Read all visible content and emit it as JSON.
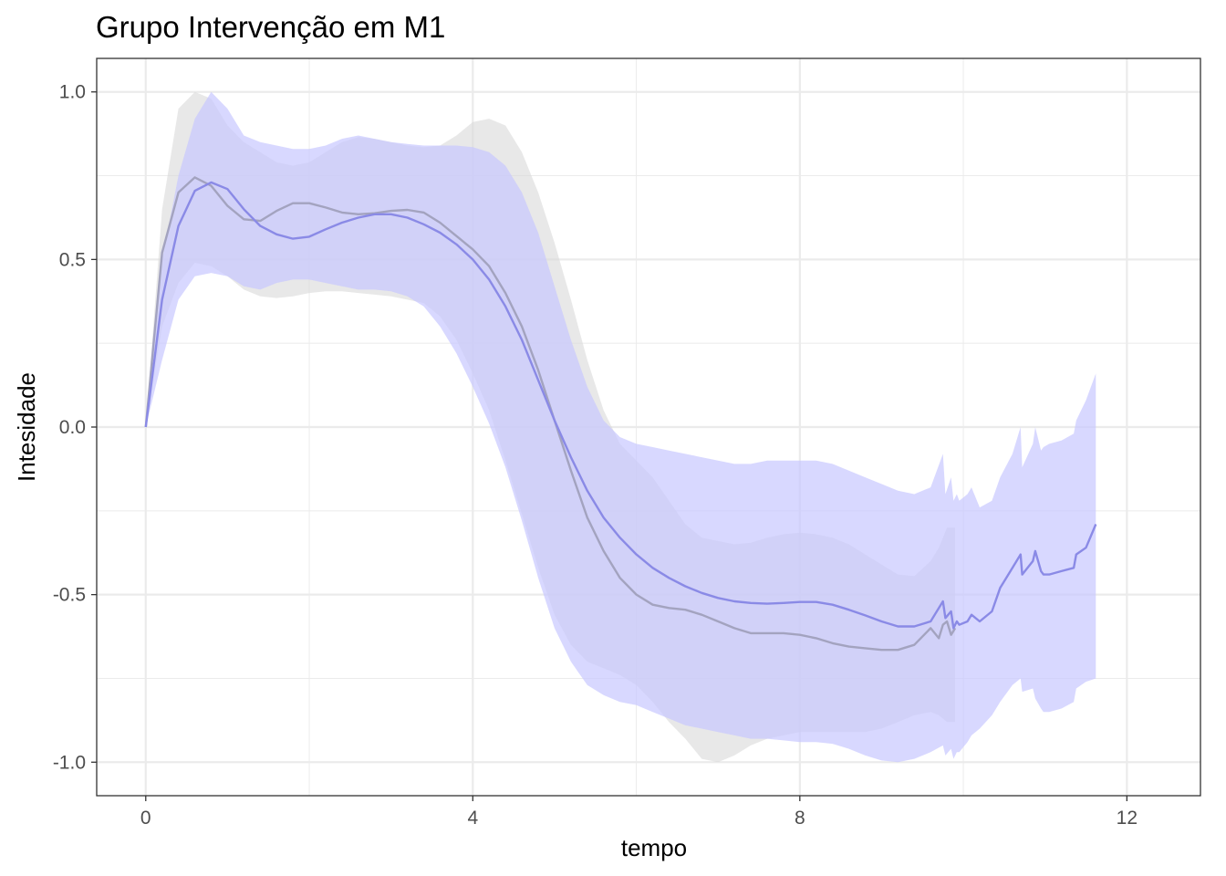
{
  "chart_data": {
    "type": "line",
    "title": "Grupo Intervenção em M1",
    "xlabel": "tempo",
    "ylabel": "Intesidade",
    "xlim": [
      -0.6,
      12.9
    ],
    "ylim": [
      -1.1,
      1.1
    ],
    "x_ticks": [
      0,
      4,
      8,
      12
    ],
    "x_tick_labels": [
      "0",
      "4",
      "8",
      "12"
    ],
    "y_ticks": [
      1.0,
      0.5,
      0.0,
      -0.5,
      -1.0
    ],
    "y_tick_labels": [
      "1.0",
      "0.5",
      "0.0",
      "-0.5",
      "-1.0"
    ],
    "grid": true,
    "legend": "none",
    "series": [
      {
        "color": "#a3a3bf",
        "band_color": "#d9d9d9",
        "x": [
          0,
          0.2,
          0.4,
          0.6,
          0.8,
          1.0,
          1.2,
          1.4,
          1.6,
          1.8,
          2.0,
          2.2,
          2.4,
          2.6,
          2.8,
          3.0,
          3.2,
          3.4,
          3.6,
          3.8,
          4.0,
          4.2,
          4.4,
          4.6,
          4.8,
          5.0,
          5.2,
          5.4,
          5.6,
          5.8,
          6.0,
          6.2,
          6.4,
          6.6,
          6.8,
          7.0,
          7.2,
          7.4,
          7.6,
          7.8,
          8.0,
          8.2,
          8.4,
          8.6,
          8.8,
          9.0,
          9.2,
          9.4,
          9.6,
          9.7,
          9.75,
          9.8,
          9.85,
          9.9
        ],
        "mean": [
          0.0,
          0.52,
          0.7,
          0.745,
          0.72,
          0.66,
          0.62,
          0.615,
          0.645,
          0.668,
          0.668,
          0.655,
          0.64,
          0.635,
          0.638,
          0.645,
          0.648,
          0.64,
          0.61,
          0.57,
          0.53,
          0.48,
          0.4,
          0.3,
          0.17,
          0.02,
          -0.13,
          -0.27,
          -0.37,
          -0.45,
          -0.5,
          -0.53,
          -0.54,
          -0.545,
          -0.56,
          -0.58,
          -0.6,
          -0.615,
          -0.615,
          -0.615,
          -0.62,
          -0.63,
          -0.645,
          -0.655,
          -0.66,
          -0.665,
          -0.665,
          -0.65,
          -0.6,
          -0.63,
          -0.59,
          -0.58,
          -0.62,
          -0.6
        ],
        "upper": [
          0.0,
          0.65,
          0.95,
          1.0,
          0.98,
          0.9,
          0.85,
          0.82,
          0.79,
          0.78,
          0.79,
          0.82,
          0.85,
          0.865,
          0.86,
          0.85,
          0.84,
          0.835,
          0.84,
          0.87,
          0.91,
          0.92,
          0.9,
          0.82,
          0.7,
          0.55,
          0.38,
          0.2,
          0.05,
          -0.05,
          -0.1,
          -0.15,
          -0.22,
          -0.29,
          -0.33,
          -0.34,
          -0.35,
          -0.345,
          -0.33,
          -0.32,
          -0.315,
          -0.32,
          -0.33,
          -0.35,
          -0.38,
          -0.41,
          -0.44,
          -0.445,
          -0.4,
          -0.36,
          -0.33,
          -0.3,
          -0.3,
          -0.3
        ],
        "lower": [
          0.0,
          0.3,
          0.43,
          0.49,
          0.48,
          0.45,
          0.41,
          0.39,
          0.385,
          0.39,
          0.4,
          0.405,
          0.405,
          0.4,
          0.395,
          0.39,
          0.38,
          0.37,
          0.33,
          0.26,
          0.16,
          0.05,
          -0.1,
          -0.26,
          -0.42,
          -0.56,
          -0.65,
          -0.7,
          -0.72,
          -0.74,
          -0.77,
          -0.82,
          -0.88,
          -0.93,
          -0.99,
          -1.0,
          -0.98,
          -0.95,
          -0.93,
          -0.92,
          -0.91,
          -0.91,
          -0.91,
          -0.91,
          -0.91,
          -0.9,
          -0.88,
          -0.86,
          -0.85,
          -0.86,
          -0.87,
          -0.88,
          -0.88,
          -0.88
        ]
      },
      {
        "color": "#8a8ae6",
        "band_color": "#c8c8ff",
        "x": [
          0,
          0.2,
          0.4,
          0.6,
          0.8,
          1.0,
          1.2,
          1.4,
          1.6,
          1.8,
          2.0,
          2.2,
          2.4,
          2.6,
          2.8,
          3.0,
          3.2,
          3.4,
          3.6,
          3.8,
          4.0,
          4.2,
          4.4,
          4.6,
          4.8,
          5.0,
          5.2,
          5.4,
          5.6,
          5.8,
          6.0,
          6.2,
          6.4,
          6.6,
          6.8,
          7.0,
          7.2,
          7.4,
          7.6,
          7.8,
          8.0,
          8.2,
          8.4,
          8.6,
          8.8,
          9.0,
          9.2,
          9.4,
          9.6,
          9.75,
          9.78,
          9.85,
          9.88,
          9.92,
          9.95,
          10.05,
          10.1,
          10.2,
          10.35,
          10.45,
          10.6,
          10.7,
          10.72,
          10.85,
          10.88,
          10.95,
          10.98,
          11.05,
          11.2,
          11.35,
          11.38,
          11.5,
          11.62
        ],
        "mean": [
          0.0,
          0.38,
          0.6,
          0.705,
          0.73,
          0.71,
          0.65,
          0.6,
          0.575,
          0.562,
          0.568,
          0.59,
          0.61,
          0.625,
          0.635,
          0.635,
          0.625,
          0.605,
          0.58,
          0.545,
          0.5,
          0.44,
          0.36,
          0.26,
          0.14,
          0.02,
          -0.09,
          -0.19,
          -0.27,
          -0.33,
          -0.38,
          -0.42,
          -0.45,
          -0.475,
          -0.495,
          -0.51,
          -0.52,
          -0.525,
          -0.527,
          -0.525,
          -0.522,
          -0.522,
          -0.53,
          -0.545,
          -0.562,
          -0.58,
          -0.595,
          -0.595,
          -0.58,
          -0.52,
          -0.57,
          -0.55,
          -0.6,
          -0.58,
          -0.59,
          -0.58,
          -0.56,
          -0.58,
          -0.55,
          -0.48,
          -0.42,
          -0.38,
          -0.44,
          -0.4,
          -0.37,
          -0.43,
          -0.44,
          -0.44,
          -0.43,
          -0.42,
          -0.38,
          -0.36,
          -0.29
        ],
        "upper": [
          0.0,
          0.5,
          0.75,
          0.92,
          1.0,
          0.95,
          0.87,
          0.85,
          0.84,
          0.83,
          0.83,
          0.84,
          0.86,
          0.87,
          0.86,
          0.85,
          0.845,
          0.84,
          0.84,
          0.84,
          0.835,
          0.82,
          0.78,
          0.7,
          0.58,
          0.42,
          0.26,
          0.12,
          0.02,
          -0.03,
          -0.05,
          -0.06,
          -0.07,
          -0.08,
          -0.09,
          -0.1,
          -0.11,
          -0.11,
          -0.1,
          -0.1,
          -0.1,
          -0.1,
          -0.11,
          -0.13,
          -0.15,
          -0.17,
          -0.19,
          -0.2,
          -0.18,
          -0.08,
          -0.2,
          -0.15,
          -0.22,
          -0.2,
          -0.22,
          -0.2,
          -0.18,
          -0.24,
          -0.22,
          -0.15,
          -0.08,
          -0.0,
          -0.12,
          -0.05,
          0.0,
          -0.07,
          -0.06,
          -0.05,
          -0.04,
          -0.02,
          0.02,
          0.08,
          0.16
        ],
        "lower": [
          0.0,
          0.2,
          0.38,
          0.45,
          0.46,
          0.45,
          0.42,
          0.41,
          0.43,
          0.44,
          0.44,
          0.43,
          0.42,
          0.41,
          0.41,
          0.405,
          0.39,
          0.36,
          0.3,
          0.22,
          0.12,
          0.01,
          -0.12,
          -0.28,
          -0.45,
          -0.6,
          -0.7,
          -0.77,
          -0.8,
          -0.82,
          -0.83,
          -0.85,
          -0.87,
          -0.89,
          -0.9,
          -0.91,
          -0.92,
          -0.93,
          -0.93,
          -0.935,
          -0.94,
          -0.94,
          -0.945,
          -0.96,
          -0.98,
          -0.995,
          -1.0,
          -0.99,
          -0.97,
          -0.95,
          -0.98,
          -0.96,
          -0.99,
          -0.97,
          -0.97,
          -0.94,
          -0.92,
          -0.9,
          -0.86,
          -0.82,
          -0.77,
          -0.75,
          -0.79,
          -0.78,
          -0.81,
          -0.84,
          -0.85,
          -0.85,
          -0.84,
          -0.82,
          -0.78,
          -0.76,
          -0.75
        ]
      }
    ]
  }
}
